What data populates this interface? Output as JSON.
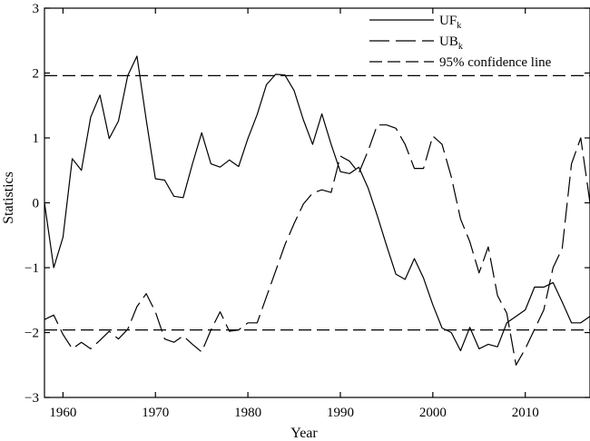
{
  "chart_data": {
    "type": "line",
    "xlabel": "Year",
    "ylabel": "Statistics",
    "xlim": [
      1958,
      2017
    ],
    "ylim": [
      -3,
      3
    ],
    "x_ticks": [
      1960,
      1970,
      1980,
      1990,
      2000,
      2010
    ],
    "y_ticks": [
      -3,
      -2,
      -1,
      0,
      1,
      2,
      3
    ],
    "x_tick_labels": [
      "1960",
      "1970",
      "1980",
      "1990",
      "2000",
      "2010"
    ],
    "y_tick_labels": [
      "−3",
      "−2",
      "−1",
      "0",
      "1",
      "2",
      "3"
    ],
    "grid": false,
    "legend_position": "top-right",
    "legend": [
      {
        "label": "UF",
        "sub": "k",
        "style": "solid"
      },
      {
        "label": "UB",
        "sub": "k",
        "style": "long-dash"
      },
      {
        "label": "95% confidence line",
        "sub": "",
        "style": "dash"
      }
    ],
    "series": [
      {
        "name": "UFk",
        "style": "solid",
        "x": [
          1958,
          1959,
          1960,
          1961,
          1962,
          1963,
          1964,
          1965,
          1966,
          1967,
          1968,
          1969,
          1970,
          1971,
          1972,
          1973,
          1974,
          1975,
          1976,
          1977,
          1978,
          1979,
          1980,
          1981,
          1982,
          1983,
          1984,
          1985,
          1986,
          1987,
          1988,
          1989,
          1990,
          1991,
          1992,
          1993,
          1994,
          1995,
          1996,
          1997,
          1998,
          1999,
          2000,
          2001,
          2002,
          2003,
          2004,
          2005,
          2006,
          2007,
          2008,
          2009,
          2010,
          2011,
          2012,
          2013,
          2014,
          2015,
          2016,
          2017
        ],
        "y": [
          0.0,
          -1.0,
          -0.53,
          0.68,
          0.5,
          1.32,
          1.66,
          0.99,
          1.26,
          1.96,
          2.26,
          1.28,
          0.37,
          0.35,
          0.1,
          0.08,
          0.6,
          1.08,
          0.6,
          0.55,
          0.66,
          0.56,
          0.99,
          1.36,
          1.82,
          1.98,
          1.97,
          1.73,
          1.28,
          0.9,
          1.37,
          0.9,
          0.48,
          0.45,
          0.55,
          0.23,
          -0.2,
          -0.66,
          -1.1,
          -1.18,
          -0.86,
          -1.16,
          -1.57,
          -1.93,
          -2.0,
          -2.28,
          -1.92,
          -2.25,
          -2.18,
          -2.22,
          -1.85,
          -1.75,
          -1.65,
          -1.3,
          -1.3,
          -1.23,
          -1.53,
          -1.85,
          -1.85,
          -1.75
        ]
      },
      {
        "name": "UBk",
        "style": "long-dash",
        "x": [
          1958,
          1959,
          1960,
          1961,
          1962,
          1963,
          1964,
          1965,
          1966,
          1967,
          1968,
          1969,
          1970,
          1971,
          1972,
          1973,
          1974,
          1975,
          1976,
          1977,
          1978,
          1979,
          1980,
          1981,
          1982,
          1983,
          1984,
          1985,
          1986,
          1987,
          1988,
          1989,
          1990,
          1991,
          1992,
          1993,
          1994,
          1995,
          1996,
          1997,
          1998,
          1999,
          2000,
          2001,
          2002,
          2003,
          2004,
          2005,
          2006,
          2007,
          2008,
          2009,
          2010,
          2011,
          2012,
          2013,
          2014,
          2015,
          2016,
          2017
        ],
        "y": [
          -1.8,
          -1.73,
          -2.03,
          -2.25,
          -2.15,
          -2.25,
          -2.12,
          -1.98,
          -2.1,
          -1.95,
          -1.6,
          -1.4,
          -1.68,
          -2.1,
          -2.15,
          -2.05,
          -2.18,
          -2.3,
          -1.96,
          -1.68,
          -1.98,
          -1.96,
          -1.85,
          -1.85,
          -1.45,
          -1.05,
          -0.65,
          -0.32,
          -0.02,
          0.15,
          0.2,
          0.16,
          0.72,
          0.64,
          0.46,
          0.8,
          1.2,
          1.2,
          1.15,
          0.9,
          0.53,
          0.53,
          1.03,
          0.9,
          0.4,
          -0.25,
          -0.6,
          -1.08,
          -0.68,
          -1.43,
          -1.7,
          -2.5,
          -2.25,
          -1.95,
          -1.65,
          -1.0,
          -0.7,
          0.6,
          1.0,
          0.0
        ]
      }
    ],
    "reference_lines": [
      {
        "name": "95% confidence line",
        "y": 1.96,
        "style": "dash"
      },
      {
        "name": "95% confidence line",
        "y": -1.96,
        "style": "dash"
      }
    ]
  }
}
